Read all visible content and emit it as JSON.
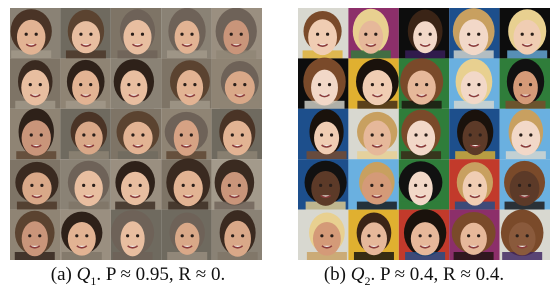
{
  "figures": [
    {
      "label": "(a)",
      "symbol": "Q",
      "subscript": "1",
      "text": ". P ≈ 0.95, R ≈ 0."
    },
    {
      "label": "(b)",
      "symbol": "Q",
      "subscript": "2",
      "text": ". P ≈ 0.4, R ≈ 0.4."
    }
  ]
}
